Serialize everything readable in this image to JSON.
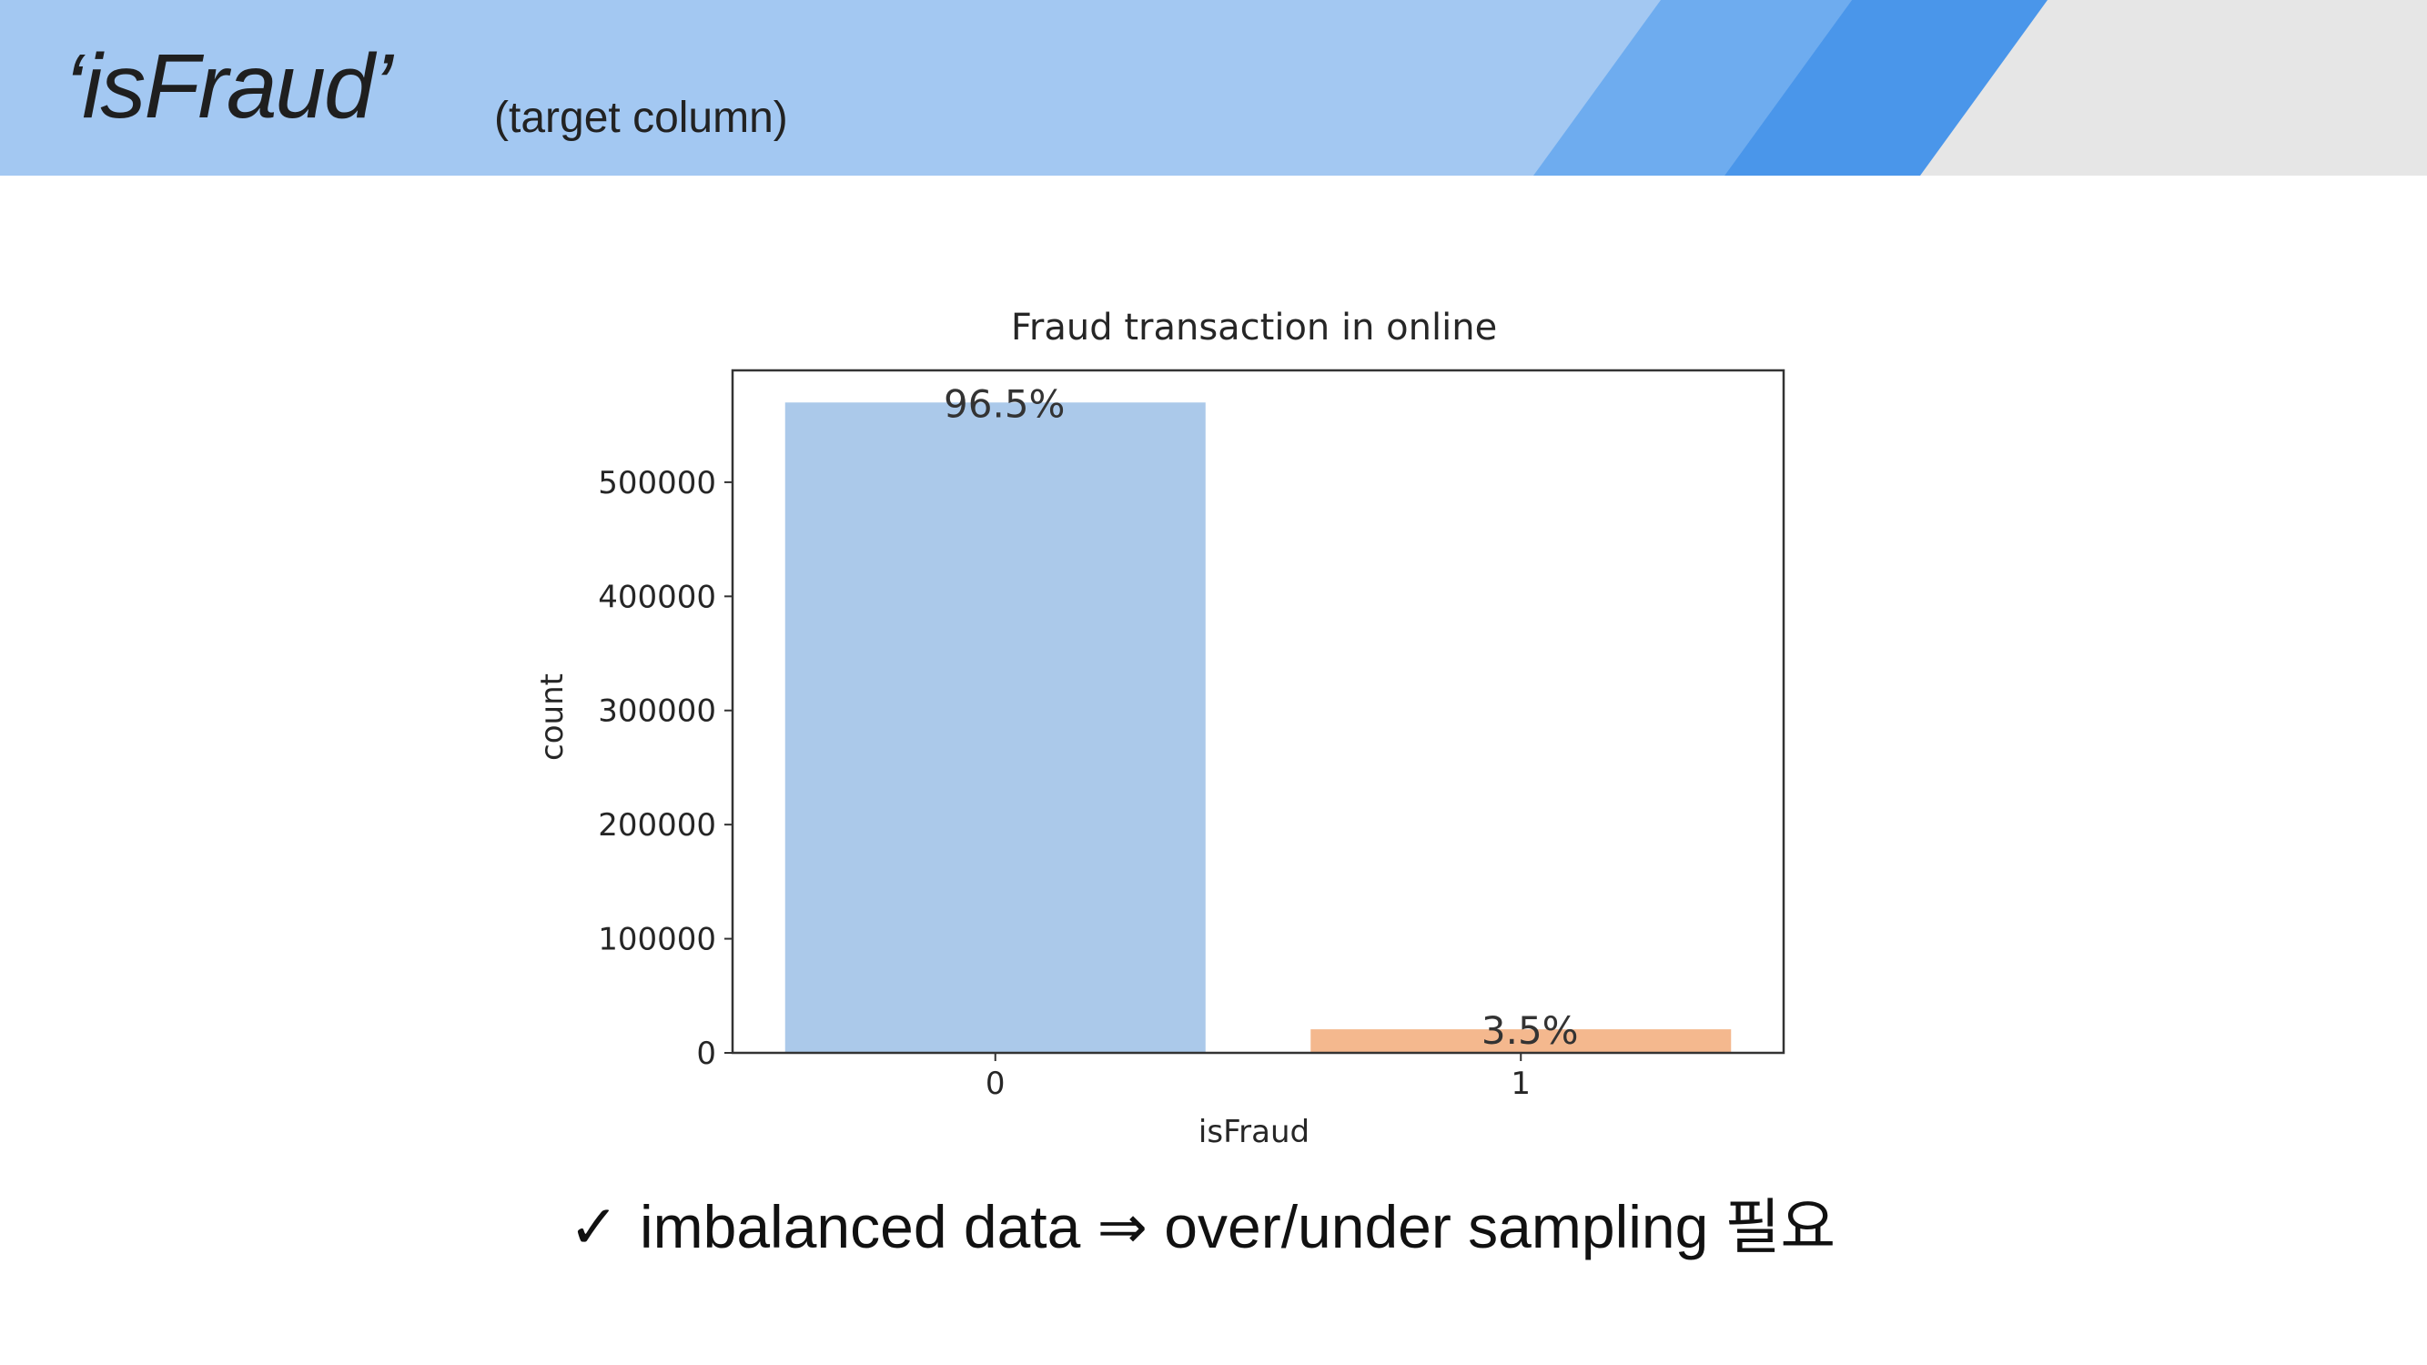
{
  "slide": {
    "title": "‘isFraud’",
    "subtitle": "(target column)",
    "bullet_check": "✓",
    "bullet_text": "imbalanced data  ⇒ over/under sampling 필요"
  },
  "colors": {
    "header_light": "#a3c8f2",
    "header_mid": "#6eacef",
    "header_dark": "#4a96ea",
    "header_gray": "#e6e6e6",
    "bar_0": "#abc9ea",
    "bar_1": "#f4b88e"
  },
  "chart_data": {
    "type": "bar",
    "title": "Fraud transaction in online",
    "xlabel": "isFraud",
    "ylabel": "count",
    "categories": [
      "0",
      "1"
    ],
    "values": [
      569877,
      20663
    ],
    "data_labels": [
      "96.5%",
      "3.5%"
    ],
    "yticks": [
      0,
      100000,
      200000,
      300000,
      400000,
      500000
    ],
    "ylim": [
      0,
      598000
    ],
    "grid": false
  }
}
